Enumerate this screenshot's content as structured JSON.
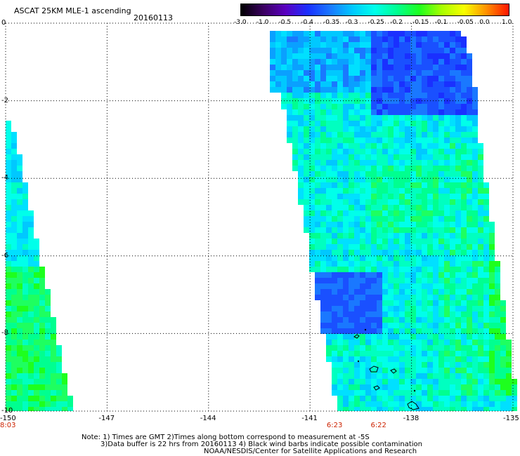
{
  "title": "ASCAT 25KM MLE-1 ascending",
  "date": "20160113",
  "colorbar": {
    "labels": [
      "-3.0",
      "-1.0",
      "-0.5",
      "-0.4",
      "-0.35",
      "-0.3",
      "-0.25",
      "-0.2",
      "-0.15",
      "-0.1",
      "-0.05",
      "0.0",
      "1.0"
    ],
    "colors": [
      "#000000",
      "#3a0060",
      "#5a00c0",
      "#1a30ff",
      "#1a78ff",
      "#00c8ff",
      "#00ffea",
      "#00ff90",
      "#1eff1e",
      "#a8ff00",
      "#f8ff00",
      "#ff9000",
      "#ff1400"
    ]
  },
  "axes": {
    "lon_ticks": [
      "-150",
      "-147",
      "-144",
      "-141",
      "-138",
      "-135"
    ],
    "lat_ticks": [
      "0",
      "-2",
      "-4",
      "-6",
      "-8",
      "-10"
    ],
    "lon_range": [
      -150,
      -135
    ],
    "lat_range": [
      -10,
      0
    ]
  },
  "time_labels": [
    {
      "text": "8:03",
      "lon": -150
    },
    {
      "text": "6:23",
      "lon": -140.3
    },
    {
      "text": "6:22",
      "lon": -139
    }
  ],
  "notes": [
    "Note: 1) Times are GMT 2)Times along bottom correspond to measurement at -5S",
    "3)Data buffer is 22 hrs from 20160113 4) Black wind barbs indicate possible contamination",
    "NOAA/NESDIS/Center for Satellite Applications and Research"
  ]
}
